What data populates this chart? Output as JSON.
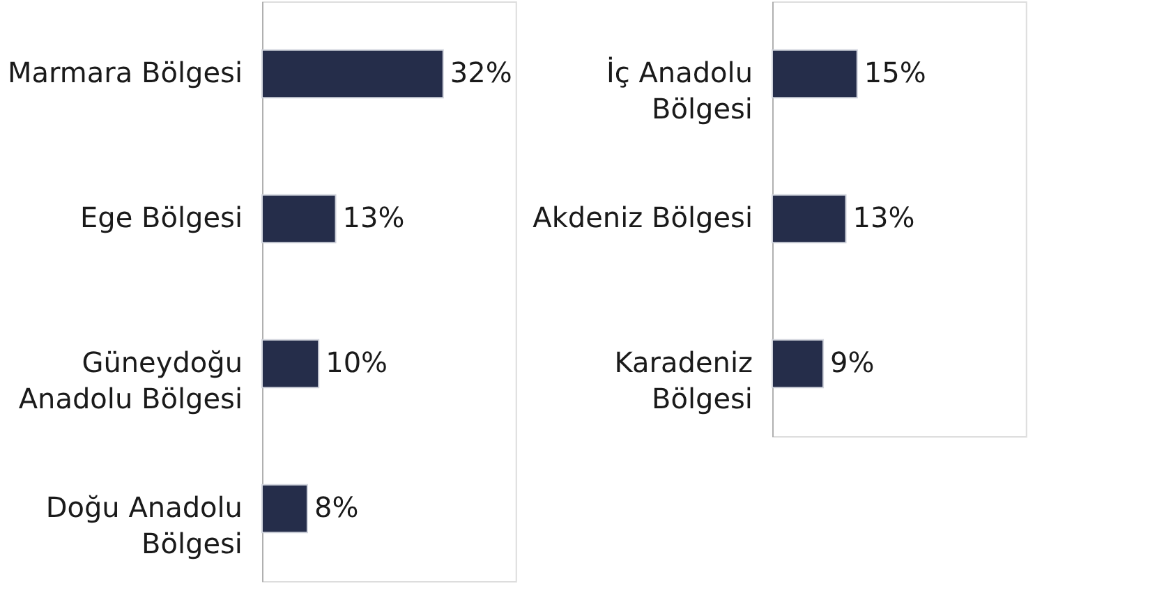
{
  "chart_data": [
    {
      "type": "bar",
      "orientation": "horizontal",
      "categories": [
        "Marmara Bölgesi",
        "Ege Bölgesi",
        "Güneydoğu Anadolu Bölgesi",
        "Doğu Anadolu Bölgesi"
      ],
      "values": [
        32,
        13,
        10,
        8
      ],
      "value_labels": [
        "32%",
        "13%",
        "10%",
        "8%"
      ],
      "color": "#252d4a"
    },
    {
      "type": "bar",
      "orientation": "horizontal",
      "categories": [
        "İç Anadolu Bölgesi",
        "Akdeniz Bölgesi",
        "Karadeniz Bölgesi"
      ],
      "values": [
        15,
        13,
        9
      ],
      "value_labels": [
        "15%",
        "13%",
        "9%"
      ],
      "color": "#252d4a"
    }
  ]
}
